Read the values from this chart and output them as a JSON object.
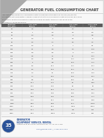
{
  "title": "GENERATOR FUEL CONSUMPTION CHART",
  "subtitle_lines": [
    "The chart below provides fuel consumption data to diesel generators based on the size (kW) and the",
    "percentage that the generator is loaded. Please note that the fuel consumption data should only be used as",
    "an estimate. Exact fuel consumption data for a specific generator model can vary based on the",
    "manufacturer model and engine."
  ],
  "col_headers": [
    "Generator Size (kW)",
    "25% Load (gal/hr)",
    "50% Load (gal/hr)",
    "75% Load (gal/hr)",
    "100% Load (gal/hr)"
  ],
  "rows": [
    [
      20,
      0.6,
      1.1,
      1.5,
      2.0
    ],
    [
      30,
      1.0,
      1.6,
      2.2,
      2.9
    ],
    [
      40,
      1.3,
      2.2,
      3.0,
      3.8
    ],
    [
      60,
      1.8,
      3.0,
      4.5,
      6.0
    ],
    [
      75,
      2.5,
      3.7,
      5.5,
      7.5
    ],
    [
      100,
      2.6,
      5.0,
      7.0,
      9.1
    ],
    [
      125,
      3.1,
      5.8,
      8.4,
      10.8
    ],
    [
      135,
      3.3,
      6.5,
      9.0,
      11.7
    ],
    [
      150,
      3.6,
      7.1,
      10.0,
      13.2
    ],
    [
      175,
      4.5,
      8.1,
      11.7,
      15.3
    ],
    [
      200,
      5.0,
      8.9,
      13.4,
      17.2
    ],
    [
      230,
      5.5,
      10.1,
      14.7,
      19.7
    ],
    [
      250,
      6.2,
      10.9,
      16.1,
      21.0
    ],
    [
      275,
      7.2,
      13.0,
      18.3,
      24.4
    ],
    [
      300,
      7.7,
      13.5,
      19.5,
      26.1
    ],
    [
      350,
      8.5,
      15.9,
      22.2,
      29.0
    ],
    [
      400,
      10.1,
      17.5,
      25.0,
      33.9
    ],
    [
      500,
      12.5,
      21.6,
      32.0,
      42.0
    ],
    [
      600,
      14.8,
      25.4,
      37.1,
      49.7
    ],
    [
      750,
      18.5,
      31.8,
      46.8,
      61.4
    ],
    [
      1000,
      22.8,
      41.6,
      58.1,
      77.1
    ],
    [
      1250,
      27.5,
      49.7,
      72.6,
      96.8
    ],
    [
      1500,
      35.5,
      60.8,
      87.1,
      114.8
    ],
    [
      2000,
      46.7,
      79.2,
      115.2,
      152.4
    ],
    [
      2500,
      57.1,
      99.6,
      144.0,
      190.0
    ],
    [
      3000,
      68.4,
      120.5,
      175.2,
      232.0
    ]
  ],
  "row_colors_alt": [
    "#e8e8e8",
    "#f5f5f5"
  ],
  "header_bg": "#5a5a5a",
  "header_fg": "#ffffff",
  "bg_color": "#f0f0f0",
  "page_bg": "#dcdcdc",
  "footer_company": "GENERATOR",
  "footer_service": "EQUIPMENT SERVICE, RENTAL",
  "footer_sub": "Contact us at any of our locations in OK, TX, AR, KS, & MO",
  "footer_url": "offer@genser.com  |  1-800-324-0900",
  "logo_num": "35",
  "logo_sub": "YEARS",
  "logo_color": "#2a5298",
  "accent_color": "#c0392b",
  "tri_color": "#888888"
}
